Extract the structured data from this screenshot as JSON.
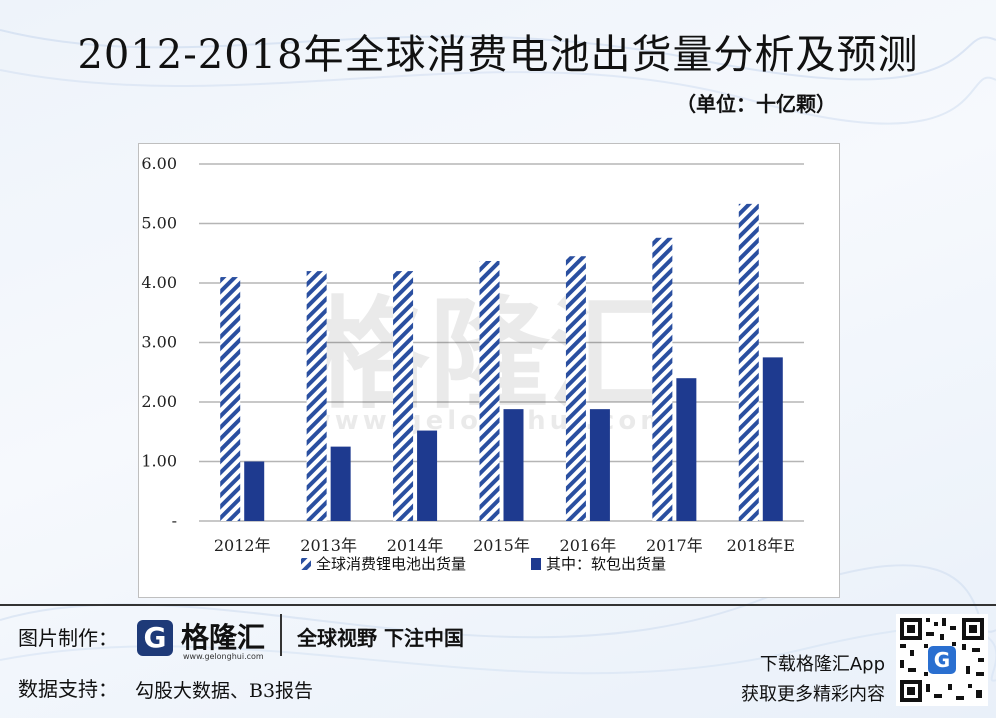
{
  "title": "2012-2018年全球消费电池出货量分析及预测",
  "unit_note": "（单位：十亿颗）",
  "watermark": {
    "brand": "格隆汇",
    "url": "www.gelonghui.com"
  },
  "chart_data": {
    "type": "bar",
    "categories": [
      "2012年",
      "2013年",
      "2014年",
      "2015年",
      "2016年",
      "2017年",
      "2018年E"
    ],
    "series": [
      {
        "name": "全球消费锂电池出货量",
        "values": [
          4.1,
          4.2,
          4.2,
          4.37,
          4.45,
          4.76,
          5.33
        ],
        "pattern": "hatched",
        "color": "#2a4fa0"
      },
      {
        "name": "其中：软包出货量",
        "values": [
          1.0,
          1.25,
          1.52,
          1.88,
          1.88,
          2.4,
          2.75
        ],
        "pattern": "solid",
        "color": "#1e3a8f"
      }
    ],
    "y_ticks": [
      "-",
      "1.00",
      "2.00",
      "3.00",
      "4.00",
      "5.00",
      "6.00"
    ],
    "ylim": [
      0,
      6
    ],
    "grid": true,
    "legend": "bottom"
  },
  "footer": {
    "credit_label": "图片制作：",
    "logo_name": "格隆汇",
    "logo_icon_letter": "G",
    "logo_url": "www.gelonghui.com",
    "slogan": "全球视野 下注中国",
    "source_label": "数据支持：",
    "source_value": "勾股大数据、B3报告",
    "app_line1": "下载格隆汇App",
    "app_line2": "获取更多精彩内容",
    "qr_badge": "G"
  }
}
